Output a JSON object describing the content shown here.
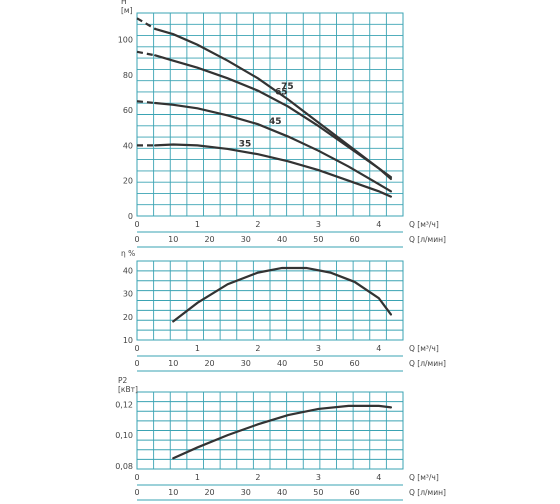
{
  "chart_data": [
    {
      "type": "line",
      "y_axis_label_lines": [
        "H",
        "[м]"
      ],
      "x_primary_label": "Q [м³/ч]",
      "x_secondary_label": "Q [л/мин]",
      "x_primary_ticks": [
        0,
        1,
        2,
        3,
        4
      ],
      "x_secondary_ticks": [
        0,
        10,
        20,
        30,
        40,
        50,
        60
      ],
      "y_ticks": [
        0,
        20,
        40,
        60,
        80,
        100
      ],
      "xlim": [
        0,
        4.4
      ],
      "ylim": [
        0,
        115
      ],
      "grid": true,
      "series": [
        {
          "name": "75",
          "dashed_x": [
            0,
            0.3
          ],
          "x": [
            0.3,
            0.6,
            1.0,
            1.5,
            2.0,
            2.5,
            3.0,
            3.5,
            4.0,
            4.2
          ],
          "y": [
            106,
            103,
            97,
            88,
            78,
            66,
            53,
            40,
            27,
            21
          ]
        },
        {
          "name": "65",
          "dashed_x": [
            0,
            0.3
          ],
          "x": [
            0.3,
            0.6,
            1.0,
            1.5,
            2.0,
            2.5,
            3.0,
            3.5,
            4.0,
            4.2
          ],
          "y": [
            91,
            88,
            84,
            78,
            71,
            62,
            51,
            39,
            27,
            22
          ]
        },
        {
          "name": "45",
          "dashed_x": [
            0,
            0.3
          ],
          "x": [
            0.3,
            0.6,
            1.0,
            1.5,
            2.0,
            2.5,
            3.0,
            3.5,
            4.0,
            4.2
          ],
          "y": [
            64,
            63,
            61,
            57,
            52,
            45,
            37,
            28,
            18,
            14
          ]
        },
        {
          "name": "35",
          "dashed_x": [
            0,
            0.3
          ],
          "x": [
            0.3,
            0.6,
            1.0,
            1.5,
            2.0,
            2.5,
            3.0,
            3.5,
            4.0,
            4.2
          ],
          "y": [
            40,
            40.5,
            40,
            38,
            35,
            31,
            26,
            20,
            14,
            11
          ]
        }
      ],
      "dashed_start_y": [
        112,
        93,
        65,
        40
      ]
    },
    {
      "type": "line",
      "y_axis_label_lines": [
        "η %"
      ],
      "x_primary_label": "Q [м³/ч]",
      "x_secondary_label": "Q [л/мин]",
      "x_primary_ticks": [
        0,
        1,
        2,
        3,
        4
      ],
      "x_secondary_ticks": [
        0,
        10,
        20,
        30,
        40,
        50,
        60
      ],
      "y_ticks": [
        10,
        20,
        30,
        40
      ],
      "xlim": [
        0,
        4.4
      ],
      "ylim": [
        10,
        44
      ],
      "grid": true,
      "series": [
        {
          "x": [
            0.6,
            1.0,
            1.5,
            2.0,
            2.4,
            2.8,
            3.2,
            3.6,
            4.0,
            4.2
          ],
          "y": [
            18,
            26,
            34,
            39,
            41,
            41,
            39,
            35,
            28,
            21
          ]
        }
      ]
    },
    {
      "type": "line",
      "y_axis_label_lines": [
        "P2",
        "[кВт]"
      ],
      "x_primary_label": "Q [м³/ч]",
      "x_secondary_label": "Q [л/мин]",
      "x_primary_ticks": [
        0,
        1,
        2,
        3,
        4
      ],
      "x_secondary_ticks": [
        0,
        10,
        20,
        30,
        40,
        50,
        60
      ],
      "y_ticks": [
        "0,08",
        "0,10",
        "0,12"
      ],
      "y_tick_values": [
        0.08,
        0.1,
        0.12
      ],
      "xlim": [
        0,
        4.4
      ],
      "ylim": [
        0.078,
        0.128
      ],
      "grid": true,
      "series": [
        {
          "x": [
            0.6,
            1.0,
            1.5,
            2.0,
            2.5,
            3.0,
            3.5,
            4.0,
            4.2
          ],
          "y": [
            0.085,
            0.092,
            0.1,
            0.107,
            0.113,
            0.117,
            0.119,
            0.119,
            0.118
          ]
        }
      ]
    }
  ]
}
